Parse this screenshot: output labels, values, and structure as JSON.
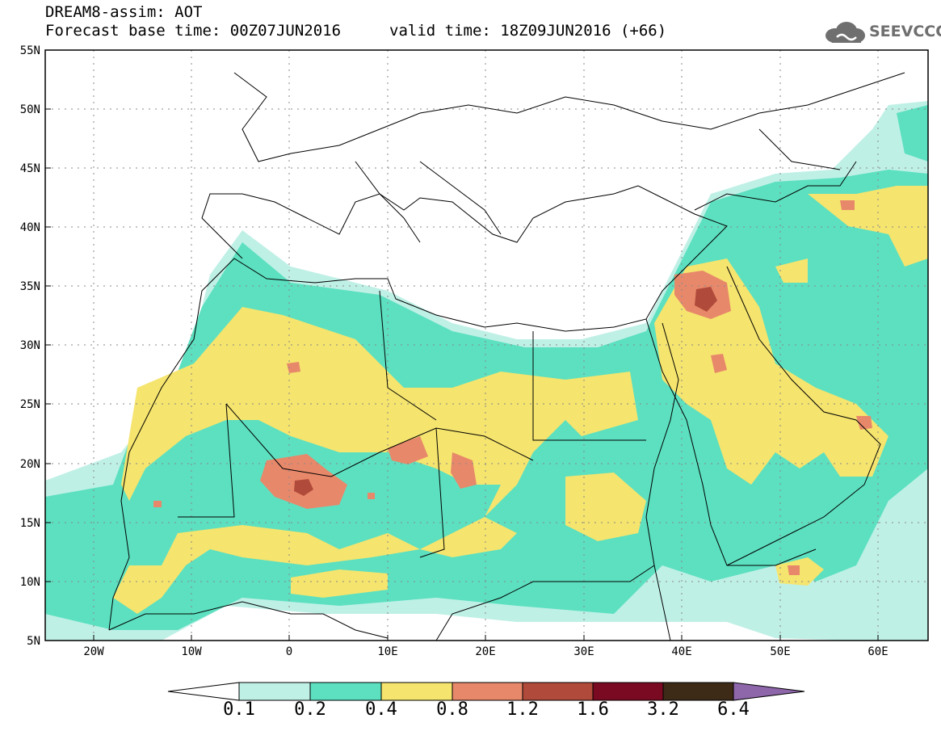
{
  "header": {
    "model_line": "DREAM8-assim: AOT",
    "base_time": "Forecast base time: 00Z07JUN2016",
    "valid_time": "valid time: 18Z09JUN2016 (+66)",
    "logo_text": "SEEVCCC"
  },
  "map": {
    "extent": {
      "lon": [
        -25,
        65
      ],
      "lat": [
        5,
        55
      ]
    },
    "lon_ticks": [
      {
        "value": -20,
        "label": "20W"
      },
      {
        "value": -10,
        "label": "10W"
      },
      {
        "value": 0,
        "label": "0"
      },
      {
        "value": 10,
        "label": "10E"
      },
      {
        "value": 20,
        "label": "20E"
      },
      {
        "value": 30,
        "label": "30E"
      },
      {
        "value": 40,
        "label": "40E"
      },
      {
        "value": 50,
        "label": "50E"
      },
      {
        "value": 60,
        "label": "60E"
      }
    ],
    "lat_ticks": [
      {
        "value": 55,
        "label": "55N"
      },
      {
        "value": 50,
        "label": "50N"
      },
      {
        "value": 45,
        "label": "45N"
      },
      {
        "value": 40,
        "label": "40N"
      },
      {
        "value": 35,
        "label": "35N"
      },
      {
        "value": 30,
        "label": "30N"
      },
      {
        "value": 25,
        "label": "25N"
      },
      {
        "value": 20,
        "label": "20N"
      },
      {
        "value": 15,
        "label": "15N"
      },
      {
        "value": 10,
        "label": "10N"
      },
      {
        "value": 5,
        "label": "5N"
      }
    ],
    "gridlines": "dotted"
  },
  "colorbar": {
    "labels": [
      "0.1",
      "0.2",
      "0.4",
      "0.8",
      "1.2",
      "1.6",
      "3.2",
      "6.4"
    ],
    "colors": [
      "#ffffff",
      "#bff0e6",
      "#5ce0c0",
      "#f5e46e",
      "#e8886a",
      "#b04a3a",
      "#7a0a22",
      "#3d2a17",
      "#8e66aa"
    ]
  }
}
